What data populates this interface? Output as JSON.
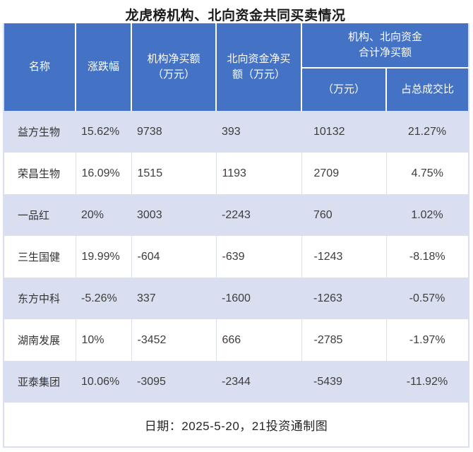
{
  "title": "龙虎榜机构、北向资金共同买卖情况",
  "colors": {
    "header_bg": "#4472c4",
    "header_text": "#ffffff",
    "band_row_bg": "#d9def0",
    "plain_row_bg": "#ffffff",
    "gridline": "#dce1f0",
    "body_text": "#3d3d3d"
  },
  "table": {
    "headers": {
      "name": "名称",
      "change": "涨跌幅",
      "inst_net": "机构净买额\n（万元）",
      "north_net": "北向资金净买\n额（万元）",
      "combined_group": "机构、北向资金\n合计净买额",
      "combined_amount": "（万元）",
      "combined_pct": "占总成交比"
    },
    "rows": [
      {
        "name": "益方生物",
        "change": "15.62%",
        "inst": "9738",
        "north": "393",
        "total": "10132",
        "pct": "21.27%"
      },
      {
        "name": "荣昌生物",
        "change": "16.09%",
        "inst": "1515",
        "north": "1193",
        "total": "2709",
        "pct": "4.75%"
      },
      {
        "name": "一品红",
        "change": "20%",
        "inst": "3003",
        "north": "-2243",
        "total": "760",
        "pct": "1.02%"
      },
      {
        "name": "三生国健",
        "change": "19.99%",
        "inst": "-604",
        "north": "-639",
        "total": "-1243",
        "pct": "-8.18%"
      },
      {
        "name": "东方中科",
        "change": "-5.26%",
        "inst": "337",
        "north": "-1600",
        "total": "-1263",
        "pct": "-0.57%"
      },
      {
        "name": "湖南发展",
        "change": "10%",
        "inst": "-3452",
        "north": "666",
        "total": "-2785",
        "pct": "-1.97%"
      },
      {
        "name": "亚泰集团",
        "change": "10.06%",
        "inst": "-3095",
        "north": "-2344",
        "total": "-5439",
        "pct": "-11.92%"
      }
    ]
  },
  "footer": "日期：2025-5-20，21投资通制图",
  "chart_data": {
    "type": "table",
    "title": "龙虎榜机构、北向资金共同买卖情况",
    "columns": [
      "名称",
      "涨跌幅",
      "机构净买额（万元）",
      "北向资金净买额（万元）",
      "机构、北向资金合计净买额（万元）",
      "机构、北向资金合计净买额占总成交比"
    ],
    "rows": [
      [
        "益方生物",
        "15.62%",
        9738,
        393,
        10132,
        "21.27%"
      ],
      [
        "荣昌生物",
        "16.09%",
        1515,
        1193,
        2709,
        "4.75%"
      ],
      [
        "一品红",
        "20%",
        3003,
        -2243,
        760,
        "1.02%"
      ],
      [
        "三生国健",
        "19.99%",
        -604,
        -639,
        -1243,
        "-8.18%"
      ],
      [
        "东方中科",
        "-5.26%",
        337,
        -1600,
        -1263,
        "-0.57%"
      ],
      [
        "湖南发展",
        "10%",
        -3452,
        666,
        -2785,
        "-1.97%"
      ],
      [
        "亚泰集团",
        "10.06%",
        -3095,
        -2344,
        -5439,
        "-11.92%"
      ]
    ],
    "note": "日期：2025-5-20，21投资通制图",
    "layout": "grouped header over last two columns; alternating lavender band rows starting with first data row"
  }
}
